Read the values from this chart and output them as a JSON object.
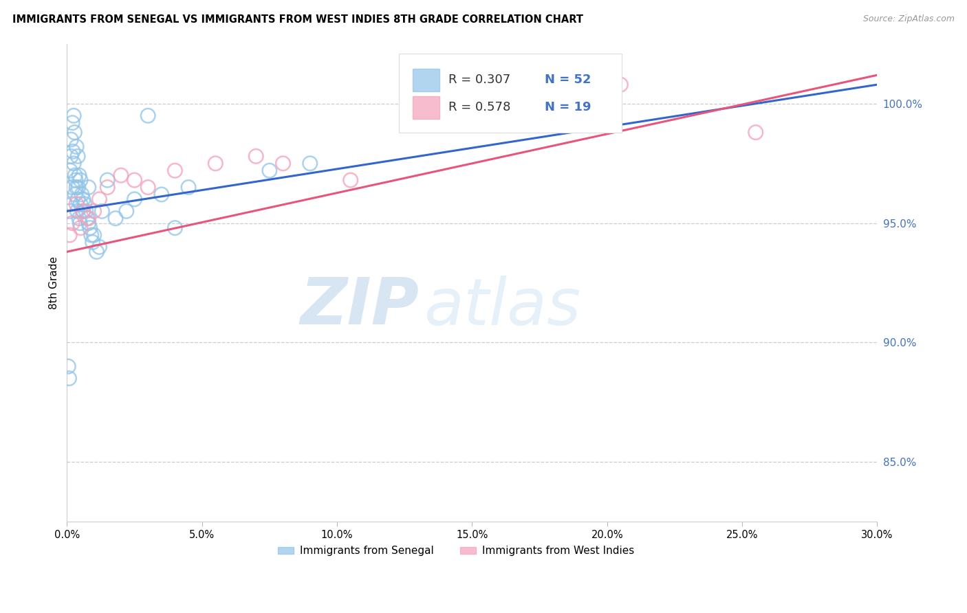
{
  "title": "IMMIGRANTS FROM SENEGAL VS IMMIGRANTS FROM WEST INDIES 8TH GRADE CORRELATION CHART",
  "source": "Source: ZipAtlas.com",
  "ylabel": "8th Grade",
  "xlabel_vals": [
    0.0,
    5.0,
    10.0,
    15.0,
    20.0,
    25.0,
    30.0
  ],
  "ylabel_vals_right": [
    100.0,
    95.0,
    90.0,
    85.0
  ],
  "ylim": [
    82.5,
    102.5
  ],
  "xlim": [
    0.0,
    30.0
  ],
  "watermark_zip": "ZIP",
  "watermark_atlas": "atlas",
  "legend_blue_label": "Immigrants from Senegal",
  "legend_pink_label": "Immigrants from West Indies",
  "R_blue": "0.307",
  "N_blue": "52",
  "R_pink": "0.578",
  "N_pink": "19",
  "blue_scatter_color": "#90c4e8",
  "pink_scatter_color": "#f4a0b8",
  "blue_line_color": "#3366cc",
  "pink_line_color": "#e8547a",
  "blue_line_x0": 0.0,
  "blue_line_y0": 95.5,
  "blue_line_x1": 30.0,
  "blue_line_y1": 100.8,
  "pink_line_x0": 0.0,
  "pink_line_y0": 93.8,
  "pink_line_x1": 30.0,
  "pink_line_y1": 101.2,
  "senegal_x": [
    0.05,
    0.08,
    0.1,
    0.12,
    0.15,
    0.15,
    0.18,
    0.2,
    0.2,
    0.22,
    0.25,
    0.25,
    0.28,
    0.3,
    0.3,
    0.32,
    0.35,
    0.35,
    0.38,
    0.4,
    0.4,
    0.42,
    0.45,
    0.45,
    0.48,
    0.5,
    0.5,
    0.55,
    0.6,
    0.6,
    0.65,
    0.7,
    0.75,
    0.8,
    0.8,
    0.85,
    0.9,
    0.95,
    1.0,
    1.1,
    1.2,
    1.3,
    1.5,
    1.8,
    2.2,
    2.5,
    3.0,
    3.5,
    4.0,
    4.5,
    7.5,
    9.0
  ],
  "senegal_y": [
    89.0,
    88.5,
    95.5,
    97.2,
    97.8,
    98.5,
    95.8,
    96.5,
    99.2,
    98.0,
    97.5,
    99.5,
    98.8,
    97.0,
    96.2,
    96.8,
    96.5,
    98.2,
    95.5,
    97.8,
    96.0,
    96.5,
    95.2,
    97.0,
    95.0,
    95.8,
    96.8,
    96.2,
    95.5,
    96.0,
    95.8,
    95.5,
    95.2,
    96.5,
    95.0,
    94.8,
    94.5,
    94.2,
    94.5,
    93.8,
    94.0,
    95.5,
    96.8,
    95.2,
    95.5,
    96.0,
    99.5,
    96.2,
    94.8,
    96.5,
    97.2,
    97.5
  ],
  "westindies_x": [
    0.1,
    0.2,
    0.35,
    0.5,
    0.6,
    0.8,
    1.0,
    1.2,
    1.5,
    2.0,
    2.5,
    3.0,
    4.0,
    5.5,
    7.0,
    8.0,
    10.5,
    20.5,
    25.5
  ],
  "westindies_y": [
    94.5,
    95.0,
    95.8,
    94.8,
    95.5,
    95.2,
    95.5,
    96.0,
    96.5,
    97.0,
    96.8,
    96.5,
    97.2,
    97.5,
    97.8,
    97.5,
    96.8,
    100.8,
    98.8
  ],
  "figsize": [
    14.06,
    8.92
  ],
  "dpi": 100
}
